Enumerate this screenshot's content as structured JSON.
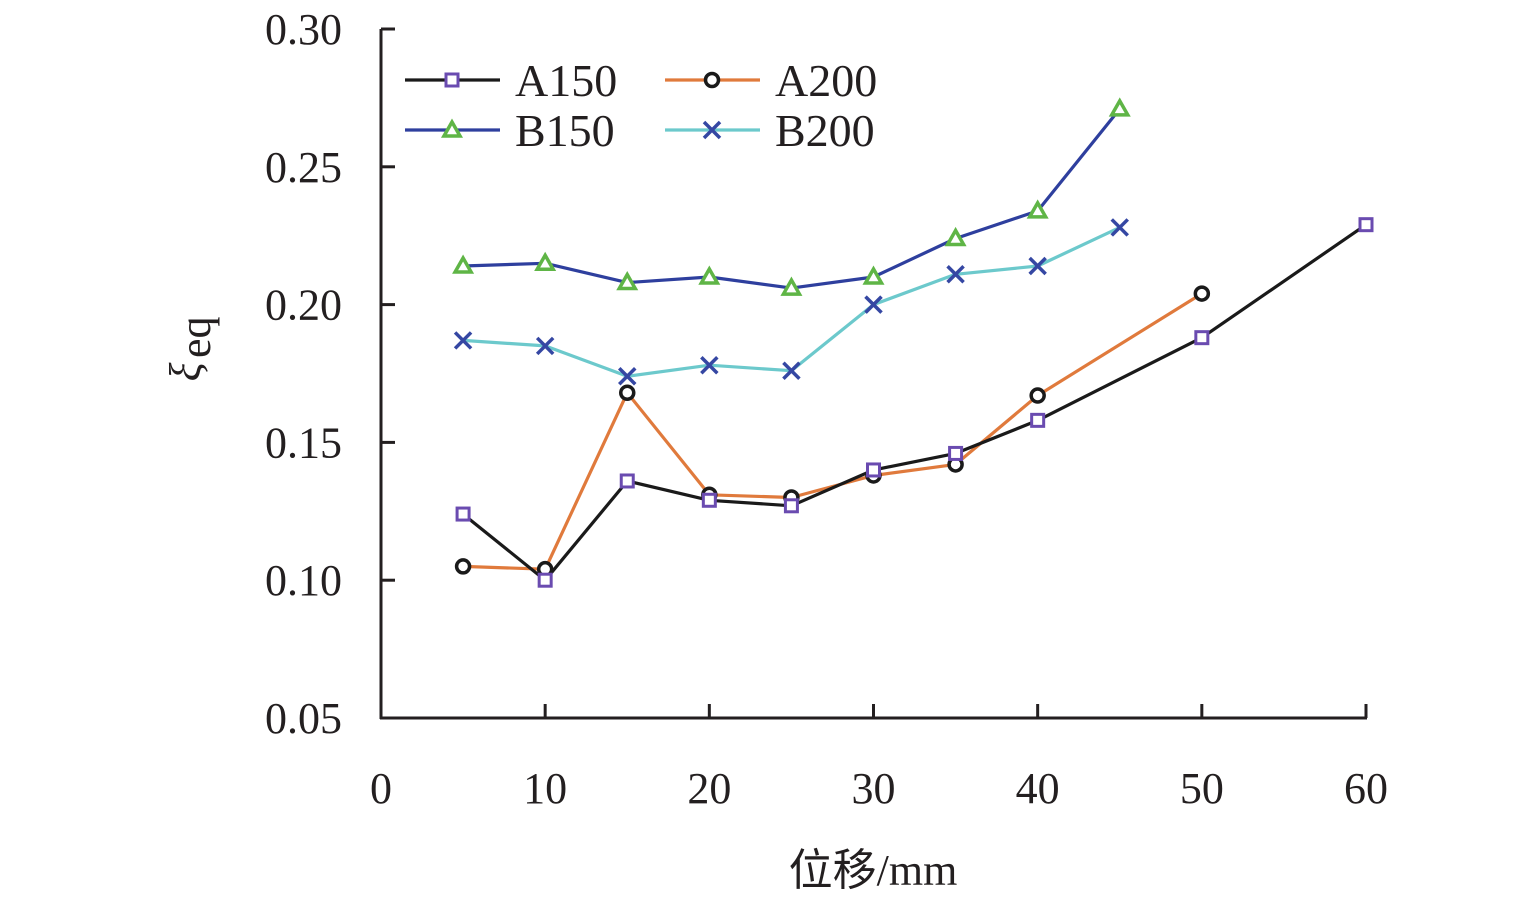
{
  "chart_data": {
    "type": "line",
    "title": "",
    "xlabel": "位移/mm",
    "ylabel": "ξ",
    "ylabel_subscript": "eq",
    "xlim": [
      0,
      60
    ],
    "ylim": [
      0.05,
      0.3
    ],
    "xticks": [
      "0",
      "10",
      "20",
      "30",
      "40",
      "50",
      "60"
    ],
    "xtick_values": [
      0,
      10,
      20,
      30,
      40,
      50,
      60
    ],
    "yticks": [
      "0.05",
      "0.10",
      "0.15",
      "0.20",
      "0.25",
      "0.30"
    ],
    "ytick_values": [
      0.05,
      0.1,
      0.15,
      0.2,
      0.25,
      0.3
    ],
    "grid": false,
    "legend_position": "top-left",
    "series": [
      {
        "name": "A150",
        "line_color": "#1a1a1a",
        "marker": "square",
        "marker_color": "#6a4bb0",
        "x": [
          5,
          10,
          15,
          20,
          25,
          30,
          35,
          40,
          50,
          60
        ],
        "y": [
          0.124,
          0.1,
          0.136,
          0.129,
          0.127,
          0.14,
          0.146,
          0.158,
          0.188,
          0.229
        ]
      },
      {
        "name": "A200",
        "line_color": "#e07a3c",
        "marker": "circle",
        "marker_color": "#1a1a1a",
        "x": [
          5,
          10,
          15,
          20,
          25,
          30,
          35,
          40,
          50
        ],
        "y": [
          0.105,
          0.104,
          0.168,
          0.131,
          0.13,
          0.138,
          0.142,
          0.167,
          0.204
        ]
      },
      {
        "name": "B150",
        "line_color": "#2e3f9e",
        "marker": "triangle",
        "marker_color": "#5fb546",
        "x": [
          5,
          10,
          15,
          20,
          25,
          30,
          35,
          40,
          45
        ],
        "y": [
          0.214,
          0.215,
          0.208,
          0.21,
          0.206,
          0.21,
          0.224,
          0.234,
          0.271
        ]
      },
      {
        "name": "B200",
        "line_color": "#6cc9cc",
        "marker": "x",
        "marker_color": "#3547a3",
        "x": [
          5,
          10,
          15,
          20,
          25,
          30,
          35,
          40,
          45
        ],
        "y": [
          0.187,
          0.185,
          0.174,
          0.178,
          0.176,
          0.2,
          0.211,
          0.214,
          0.228
        ]
      }
    ]
  }
}
